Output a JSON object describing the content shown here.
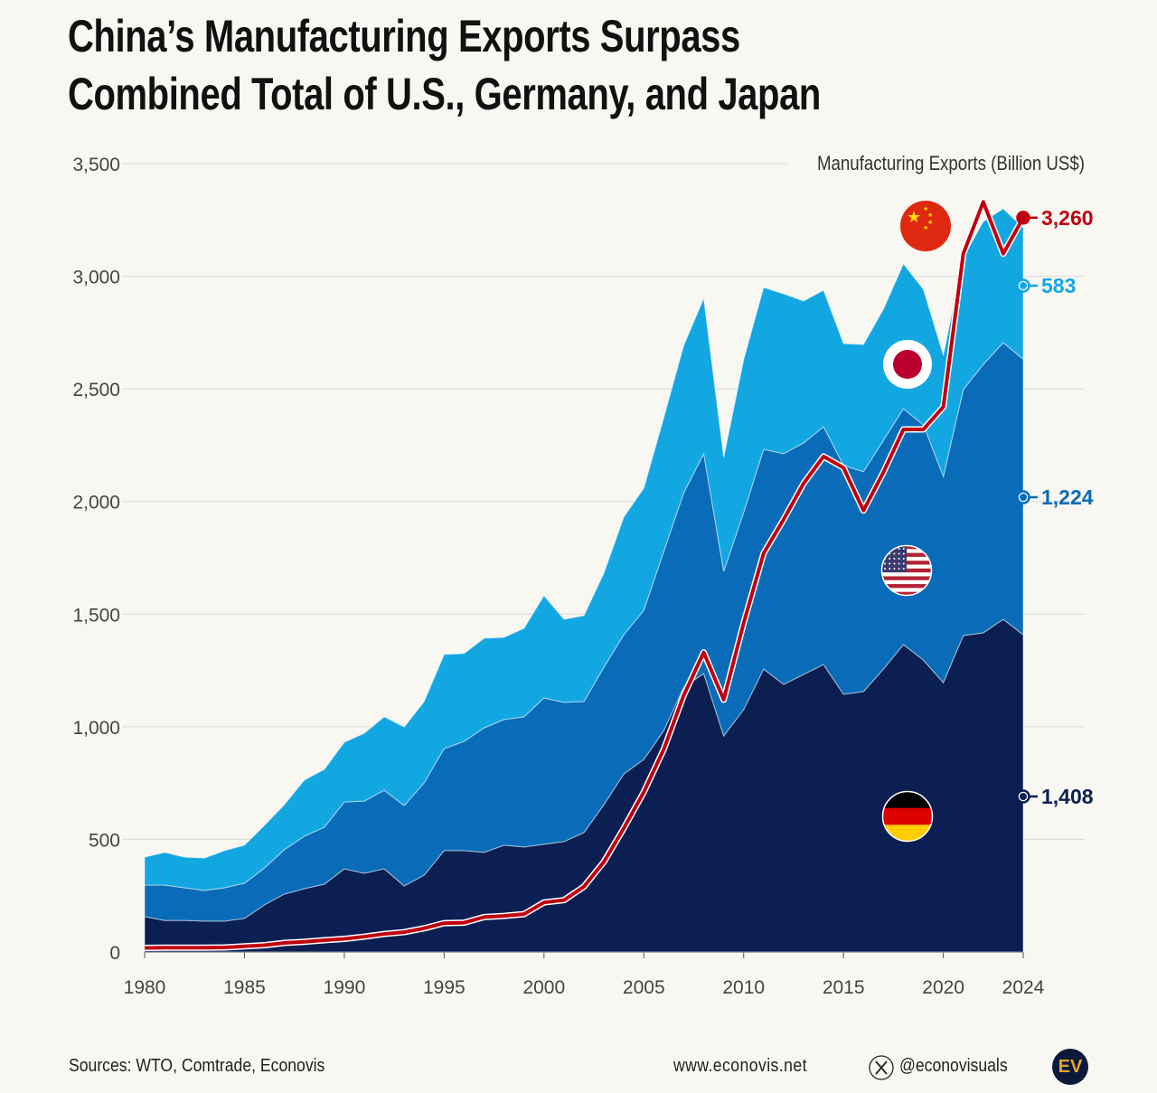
{
  "title_lines": [
    "China’s Manufacturing Exports Surpass",
    "Combined Total of U.S., Germany, and Japan"
  ],
  "chart_data": {
    "type": "area",
    "stacked": true,
    "unit_label": "Manufacturing Exports (Billion US$)",
    "x": [
      1980,
      1981,
      1982,
      1983,
      1984,
      1985,
      1986,
      1987,
      1988,
      1989,
      1990,
      1991,
      1992,
      1993,
      1994,
      1995,
      1996,
      1997,
      1998,
      1999,
      2000,
      2001,
      2002,
      2003,
      2004,
      2005,
      2006,
      2007,
      2008,
      2009,
      2010,
      2011,
      2012,
      2013,
      2014,
      2015,
      2016,
      2017,
      2018,
      2019,
      2020,
      2021,
      2022,
      2023,
      2024
    ],
    "xticks": [
      1980,
      1985,
      1990,
      1995,
      2000,
      2005,
      2010,
      2015,
      2020,
      2024
    ],
    "yticks": [
      0,
      500,
      1000,
      1500,
      2000,
      2500,
      3000,
      3500
    ],
    "ytick_labels": [
      "0",
      "500",
      "1,000",
      "1,500",
      "2,000",
      "2,500",
      "3,000",
      "3,500"
    ],
    "xlim": [
      1980,
      2024
    ],
    "ylim": [
      0,
      3500
    ],
    "grid": "horizontal",
    "series": [
      {
        "country": "Germany",
        "flag": "germany-flag",
        "color": "#0b1f52",
        "end_label": "1,408",
        "values": [
          157,
          140,
          140,
          137,
          137,
          149,
          209,
          257,
          281,
          301,
          369,
          349,
          369,
          293,
          341,
          450,
          450,
          442,
          474,
          466,
          478,
          490,
          530,
          654,
          791,
          855,
          983,
          1176,
          1236,
          959,
          1076,
          1256,
          1188,
          1232,
          1276,
          1144,
          1156,
          1256,
          1365,
          1296,
          1196,
          1405,
          1417,
          1477,
          1408
        ]
      },
      {
        "country": "United States",
        "flag": "us-flag",
        "color": "#0a6cb8",
        "end_label": "1,224",
        "values": [
          140,
          157,
          145,
          136,
          148,
          156,
          164,
          197,
          233,
          253,
          297,
          321,
          349,
          357,
          410,
          453,
          485,
          553,
          558,
          578,
          650,
          618,
          582,
          610,
          618,
          662,
          795,
          863,
          976,
          731,
          875,
          976,
          1024,
          1028,
          1056,
          1016,
          976,
          1016,
          1047,
          1044,
          915,
          1092,
          1192,
          1228,
          1224
        ]
      },
      {
        "country": "Japan",
        "flag": "japan-flag",
        "color": "#13a7e2",
        "end_label": "583",
        "values": [
          124,
          145,
          136,
          144,
          165,
          169,
          189,
          200,
          249,
          257,
          265,
          301,
          326,
          349,
          361,
          418,
          390,
          398,
          365,
          393,
          454,
          369,
          381,
          418,
          522,
          542,
          594,
          654,
          690,
          506,
          678,
          718,
          710,
          630,
          606,
          541,
          565,
          582,
          643,
          602,
          538,
          586,
          634,
          595,
          583
        ]
      }
    ],
    "line": {
      "country": "China",
      "flag": "china-flag",
      "color": "#c0000f",
      "end_label": "3,260",
      "values": [
        18,
        19,
        19,
        19,
        20,
        25,
        30,
        40,
        45,
        52,
        58,
        68,
        80,
        88,
        105,
        128,
        130,
        155,
        160,
        168,
        220,
        230,
        290,
        400,
        550,
        710,
        900,
        1140,
        1330,
        1120,
        1460,
        1770,
        1920,
        2080,
        2200,
        2150,
        1960,
        2130,
        2320,
        2320,
        2420,
        3100,
        3330,
        3100,
        3260
      ]
    }
  },
  "footer": {
    "sources": "Sources: WTO, Comtrade, Econovis",
    "website": "www.econovis.net",
    "social": "@econovisuals",
    "logo_text": "EV"
  }
}
